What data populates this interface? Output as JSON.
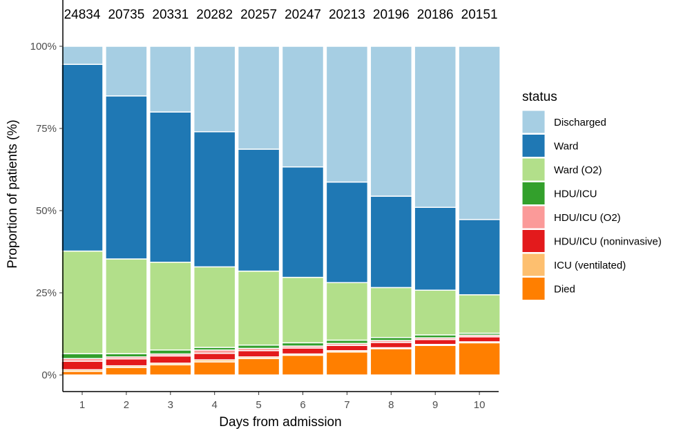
{
  "chart_data": {
    "type": "bar",
    "stacked": true,
    "normalized": true,
    "xlabel": "Days from admission",
    "ylabel": "Proportion of patients (%)",
    "ylim": [
      0,
      100
    ],
    "y_ticks": [
      "0%",
      "25%",
      "50%",
      "75%",
      "100%"
    ],
    "categories": [
      "1",
      "2",
      "3",
      "4",
      "5",
      "6",
      "7",
      "8",
      "9",
      "10"
    ],
    "totals": [
      "24834",
      "20735",
      "20331",
      "20282",
      "20257",
      "20247",
      "20213",
      "20196",
      "20186",
      "20151"
    ],
    "legend_title": "status",
    "legend_position": "right",
    "grid": false,
    "series": [
      {
        "name": "Died",
        "color": "#ff7f00",
        "values": [
          1.1,
          2.3,
          3.1,
          4.0,
          5.0,
          6.0,
          7.0,
          8.0,
          9.0,
          9.8
        ]
      },
      {
        "name": "ICU (ventilated)",
        "color": "#fdbf6f",
        "values": [
          0.5,
          0.5,
          0.5,
          0.6,
          0.5,
          0.4,
          0.4,
          0.3,
          0.3,
          0.3
        ]
      },
      {
        "name": "HDU/ICU (noninvasive)",
        "color": "#e31a1c",
        "values": [
          2.6,
          2.1,
          2.2,
          2.0,
          1.9,
          1.8,
          1.6,
          1.6,
          1.5,
          1.5
        ]
      },
      {
        "name": "HDU/ICU (O2)",
        "color": "#fb9a99",
        "values": [
          0.8,
          0.6,
          0.6,
          1.0,
          0.7,
          0.6,
          0.6,
          0.6,
          0.5,
          0.5
        ]
      },
      {
        "name": "HDU/ICU",
        "color": "#33a02c",
        "values": [
          1.5,
          1.0,
          1.2,
          0.8,
          1.0,
          1.0,
          1.0,
          0.9,
          0.9,
          0.6
        ]
      },
      {
        "name": "Ward (O2)",
        "color": "#b2df8a",
        "values": [
          31.2,
          28.8,
          26.7,
          24.5,
          22.5,
          19.9,
          17.5,
          15.2,
          13.6,
          11.7
        ]
      },
      {
        "name": "Ward",
        "color": "#1f78b4",
        "values": [
          56.8,
          49.6,
          45.7,
          41.1,
          37.1,
          33.6,
          30.6,
          27.8,
          25.2,
          22.9
        ]
      },
      {
        "name": "Discharged",
        "color": "#a6cee3",
        "values": [
          5.5,
          15.1,
          20.0,
          26.0,
          31.3,
          36.7,
          41.3,
          45.6,
          49.0,
          52.7
        ]
      }
    ],
    "legend_order": [
      "Discharged",
      "Ward",
      "Ward (O2)",
      "HDU/ICU",
      "HDU/ICU (O2)",
      "HDU/ICU (noninvasive)",
      "ICU (ventilated)",
      "Died"
    ]
  }
}
